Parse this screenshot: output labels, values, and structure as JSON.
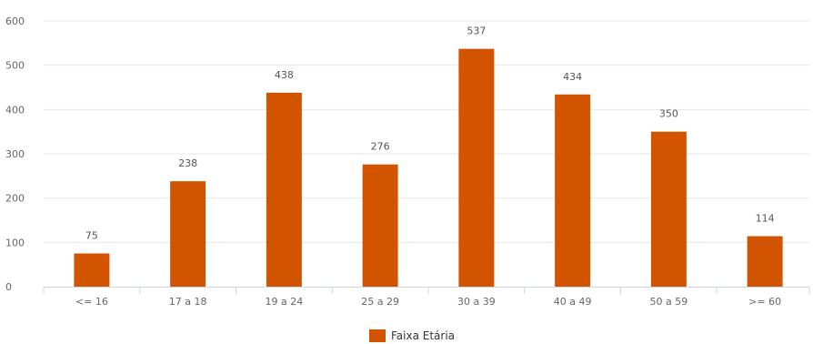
{
  "chart_data": {
    "type": "bar",
    "categories": [
      "<= 16",
      "17 a 18",
      "19 a 24",
      "25 a 29",
      "30 a 39",
      "40 a 49",
      "50 a 59",
      ">= 60"
    ],
    "series": [
      {
        "name": "Faixa Etária",
        "values": [
          75,
          238,
          438,
          276,
          537,
          434,
          350,
          114
        ],
        "color": "#d35400"
      }
    ],
    "ylim": [
      0,
      600
    ],
    "yticks": [
      0,
      100,
      200,
      300,
      400,
      500,
      600
    ],
    "grid": true,
    "legend": "bottom-center",
    "title": "",
    "xlabel": "",
    "ylabel": ""
  }
}
